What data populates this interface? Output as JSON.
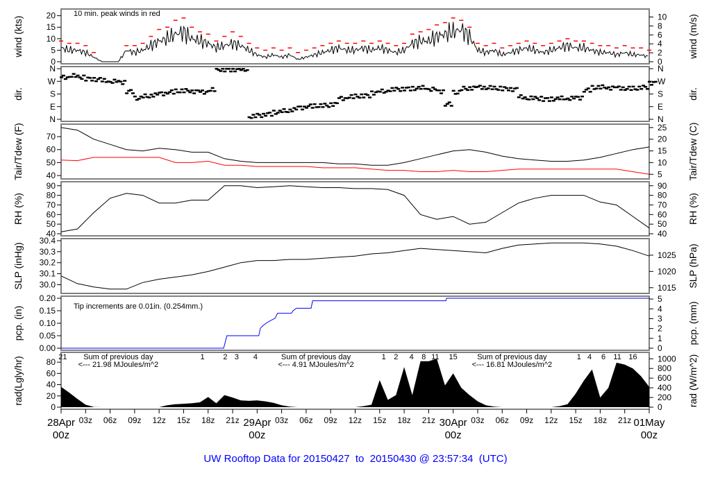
{
  "title": "UW Rooftop Data for 20150427  to  20150430 @ 23:57:34  (UTC)",
  "time_axis": {
    "hour_ticks": [
      "03z",
      "06z",
      "09z",
      "12z",
      "15z",
      "18z",
      "21z"
    ],
    "dates": [
      {
        "date": "28Apr",
        "hour": "00z"
      },
      {
        "date": "29Apr",
        "hour": "00z"
      },
      {
        "date": "30Apr",
        "hour": "00z"
      },
      {
        "date": "01May",
        "hour": "00z"
      }
    ],
    "range": [
      "28Apr 00:00",
      "01May 00:00"
    ],
    "date_color": "#ff0000"
  },
  "colors": {
    "line": "#000000",
    "peak": "#ff0000",
    "dew": "#ff0000",
    "precip": "#0000ff",
    "note": "#9933ff",
    "frame": "#808080"
  },
  "chart_data": [
    {
      "id": "wind",
      "type": "line",
      "ylabel": "wind (kts)",
      "ylim": [
        0,
        22
      ],
      "yticks": [
        0,
        5,
        10,
        15,
        20
      ],
      "right_label": "wind (m/s)",
      "right_ticks": [
        0,
        2,
        4,
        6,
        8,
        10
      ],
      "annotation": "10 min. peak winds in red",
      "x_start": "28Apr 00:00",
      "step_hours": 1,
      "series": [
        {
          "name": "wind",
          "values": [
            6,
            5,
            5,
            4,
            2,
            0,
            0,
            0,
            5,
            4,
            5,
            7,
            9,
            10,
            12,
            13,
            10,
            9,
            8,
            6,
            7,
            8,
            7,
            5,
            3,
            2,
            3,
            2,
            3,
            1,
            2,
            3,
            4,
            5,
            6,
            5,
            5,
            6,
            5,
            6,
            5,
            4,
            5,
            8,
            9,
            9,
            11,
            12,
            13,
            14,
            11,
            5,
            4,
            5,
            3,
            4,
            5,
            6,
            5,
            4,
            5,
            6,
            7,
            6,
            6,
            5,
            4,
            4,
            3,
            4,
            3,
            3,
            2
          ]
        },
        {
          "name": "10 min. peak",
          "values": [
            9,
            8,
            8,
            7,
            4,
            0,
            0,
            0,
            7,
            7,
            8,
            11,
            14,
            15,
            18,
            19,
            15,
            13,
            12,
            9,
            11,
            13,
            11,
            8,
            6,
            5,
            6,
            5,
            6,
            4,
            5,
            6,
            7,
            8,
            9,
            8,
            8,
            9,
            8,
            9,
            8,
            7,
            8,
            12,
            13,
            14,
            16,
            17,
            19,
            18,
            15,
            8,
            7,
            8,
            6,
            7,
            8,
            9,
            8,
            7,
            8,
            9,
            10,
            9,
            9,
            8,
            7,
            7,
            6,
            7,
            6,
            6,
            5
          ]
        }
      ]
    },
    {
      "id": "dir",
      "type": "scatter",
      "ylabel": "dir.",
      "ylim": [
        0,
        360
      ],
      "yticks": [
        {
          "v": 0,
          "t": "N"
        },
        {
          "v": 90,
          "t": "E"
        },
        {
          "v": 180,
          "t": "S"
        },
        {
          "v": 270,
          "t": "W"
        },
        {
          "v": 360,
          "t": "N"
        }
      ],
      "right_label": "dir.",
      "x_start": "28Apr 00:00",
      "step_hours": 1,
      "values": [
        300,
        310,
        300,
        290,
        285,
        275,
        270,
        265,
        200,
        150,
        165,
        175,
        185,
        195,
        200,
        205,
        200,
        195,
        210,
        355,
        355,
        355,
        355,
        20,
        30,
        40,
        50,
        60,
        70,
        85,
        95,
        95,
        100,
        110,
        150,
        160,
        165,
        170,
        190,
        200,
        210,
        215,
        220,
        220,
        225,
        215,
        200,
        110,
        190,
        220,
        225,
        230,
        225,
        220,
        220,
        215,
        160,
        150,
        150,
        145,
        145,
        150,
        150,
        155,
        210,
        225,
        230,
        225,
        225,
        220,
        220,
        230,
        260
      ]
    },
    {
      "id": "temp",
      "type": "line",
      "ylabel": "Tair/Tdew (F)",
      "ylim": [
        39,
        78
      ],
      "yticks": [
        40,
        50,
        60,
        70
      ],
      "right_label": "Tair/Tdew (C)",
      "right_ticks": [
        5,
        10,
        15,
        20,
        25
      ],
      "x_start": "28Apr 00:00",
      "step_hours": 2,
      "series": [
        {
          "name": "Tair",
          "values": [
            77,
            75,
            68,
            64,
            60,
            59,
            61,
            60,
            58,
            58,
            53,
            51,
            50,
            50,
            50,
            50,
            50,
            49,
            49,
            48,
            48,
            50,
            53,
            56,
            59,
            60,
            58,
            55,
            53,
            52,
            51,
            51,
            52,
            54,
            57,
            60,
            62
          ]
        },
        {
          "name": "Tdew",
          "values": [
            52,
            51.5,
            54,
            54,
            54,
            54,
            54,
            50,
            50,
            51,
            48,
            48,
            47,
            47,
            47,
            47,
            46,
            46,
            46,
            45,
            44,
            44,
            43,
            43,
            44,
            43,
            43,
            44,
            45,
            45,
            45,
            45,
            45,
            45,
            45,
            43,
            41
          ]
        }
      ]
    },
    {
      "id": "rh",
      "type": "line",
      "ylabel": "RH (%)",
      "ylim": [
        40,
        92
      ],
      "yticks": [
        40,
        50,
        60,
        70,
        80,
        90
      ],
      "right_label": "RH (%)",
      "right_ticks": [
        40,
        50,
        60,
        70,
        80,
        90
      ],
      "x_start": "28Apr 00:00",
      "step_hours": 2,
      "values": [
        42,
        45,
        62,
        77,
        82,
        80,
        72,
        72,
        75,
        75,
        90,
        90,
        88,
        89,
        90,
        89,
        88,
        88,
        87,
        87,
        86,
        80,
        60,
        55,
        58,
        50,
        52,
        62,
        72,
        77,
        80,
        80,
        80,
        73,
        70,
        58,
        46
      ]
    },
    {
      "id": "slp",
      "type": "line",
      "ylabel": "SLP (inHg)",
      "ylim": [
        29.94,
        30.4
      ],
      "yticks": [
        "30.0",
        "30.1",
        "30.2",
        "30.3",
        "30.4"
      ],
      "right_label": "SLP (hPa)",
      "right_ticks": [
        1015,
        1020,
        1025
      ],
      "x_start": "28Apr 00:00",
      "step_hours": 2,
      "values": [
        30.08,
        30.01,
        29.98,
        29.96,
        29.96,
        30.02,
        30.05,
        30.07,
        30.09,
        30.12,
        30.16,
        30.2,
        30.22,
        30.22,
        30.23,
        30.23,
        30.24,
        30.25,
        30.26,
        30.28,
        30.29,
        30.31,
        30.33,
        30.32,
        30.31,
        30.3,
        30.29,
        30.33,
        30.36,
        30.37,
        30.38,
        30.38,
        30.38,
        30.37,
        30.35,
        30.31,
        30.26
      ]
    },
    {
      "id": "pcp",
      "type": "line",
      "ylabel": "pcp. (in)",
      "ylim": [
        0,
        0.2
      ],
      "yticks": [
        "0.00",
        "0.05",
        "0.10",
        "0.15",
        "0.20"
      ],
      "right_label": "pcp. (mm)",
      "right_ticks": [
        0,
        1,
        2,
        3,
        4,
        5
      ],
      "annotation": "Tip increments are 0.01in. (0.254mm.)",
      "points": [
        [
          "28Apr 00:00",
          0
        ],
        [
          "28Apr 19:54",
          0
        ],
        [
          "28Apr 20:18",
          0.05
        ],
        [
          "29Apr 00:12",
          0.05
        ],
        [
          "29Apr 00:24",
          0.08
        ],
        [
          "29Apr 00:42",
          0.09
        ],
        [
          "29Apr 01:06",
          0.1
        ],
        [
          "29Apr 01:36",
          0.11
        ],
        [
          "29Apr 02:12",
          0.12
        ],
        [
          "29Apr 02:30",
          0.14
        ],
        [
          "29Apr 04:12",
          0.14
        ],
        [
          "29Apr 04:24",
          0.15
        ],
        [
          "29Apr 04:48",
          0.16
        ],
        [
          "29Apr 06:36",
          0.16
        ],
        [
          "29Apr 06:48",
          0.19
        ],
        [
          "29Apr 23:06",
          0.19
        ],
        [
          "29Apr 23:12",
          0.2
        ],
        [
          "01May 00:00",
          0.2
        ]
      ]
    },
    {
      "id": "rad",
      "type": "area",
      "ylabel": "rad(Lgly/hr)",
      "yticks": [
        0,
        20,
        40,
        60,
        80
      ],
      "right_label": "rad (W/m^2)",
      "right_ticks": [
        0,
        200,
        400,
        600,
        800,
        1000
      ],
      "ylim_wm2": [
        0,
        1090
      ],
      "x_start": "28Apr 00:00",
      "step_hours": 1,
      "values": [
        420,
        300,
        170,
        50,
        5,
        0,
        0,
        0,
        0,
        0,
        0,
        0,
        0,
        40,
        60,
        70,
        80,
        100,
        210,
        80,
        250,
        200,
        140,
        130,
        140,
        120,
        90,
        40,
        10,
        0,
        0,
        0,
        0,
        0,
        0,
        0,
        0,
        20,
        50,
        560,
        150,
        250,
        830,
        250,
        950,
        950,
        1000,
        450,
        700,
        400,
        250,
        120,
        40,
        10,
        0,
        0,
        0,
        0,
        0,
        0,
        0,
        20,
        60,
        280,
        550,
        780,
        200,
        400,
        920,
        880,
        800,
        640,
        420
      ],
      "daily_sums": [
        {
          "at": "28Apr 07:00",
          "line1": "Sum of previous day",
          "line2": "<--- 21.98 MJoules/m^2"
        },
        {
          "at": "29Apr 07:12",
          "line1": "Sum of previous day",
          "line2": "<--- 4.91 MJoules/m^2"
        },
        {
          "at": "30Apr 07:12",
          "line1": "Sum of previous day",
          "line2": "<--- 16.81 MJoules/m^2"
        }
      ],
      "tip_counts": [
        [
          "28Apr 00:12",
          "21"
        ],
        [
          "28Apr 17:18",
          "1"
        ],
        [
          "28Apr 20:06",
          "2"
        ],
        [
          "28Apr 21:30",
          "3"
        ],
        [
          "28Apr 23:48",
          "4"
        ],
        [
          "29Apr 15:30",
          "1"
        ],
        [
          "29Apr 17:00",
          "2"
        ],
        [
          "29Apr 18:54",
          "4"
        ],
        [
          "29Apr 20:24",
          "8"
        ],
        [
          "29Apr 21:48",
          "11"
        ],
        [
          "30Apr 00:00",
          "15"
        ],
        [
          "30Apr 15:24",
          "1"
        ],
        [
          "30Apr 16:42",
          "4"
        ],
        [
          "30Apr 18:24",
          "6"
        ],
        [
          "30Apr 20:06",
          "11"
        ],
        [
          "30Apr 22:00",
          "16"
        ]
      ]
    }
  ]
}
